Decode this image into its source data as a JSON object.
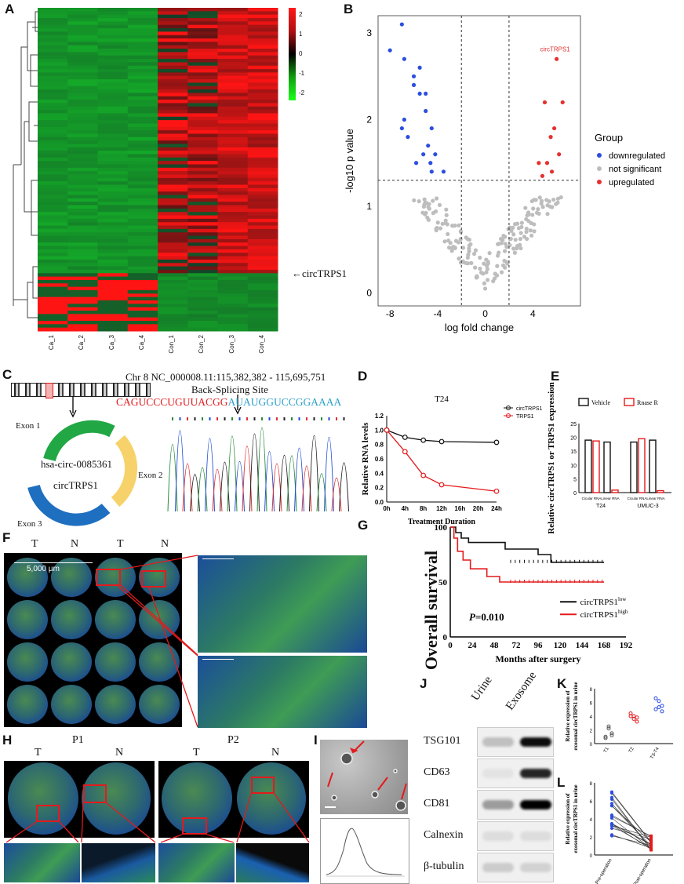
{
  "panels": {
    "A": "A",
    "B": "B",
    "C": "C",
    "D": "D",
    "E": "E",
    "F": "F",
    "G": "G",
    "H": "H",
    "I": "I",
    "J": "J",
    "K": "K",
    "L": "L"
  },
  "heatmap": {
    "columns": [
      "Ca_1",
      "Ca_2",
      "Ca_3",
      "Ca_4",
      "Con_1",
      "Con_2",
      "Con_3",
      "Con_4"
    ],
    "colorbar_ticks": [
      "2",
      "1",
      "0",
      "-1",
      "-2"
    ],
    "annotation": "←circTRPS1",
    "colors": {
      "high": "#ff1a1a",
      "mid": "#000000",
      "low": "#1aff1a"
    }
  },
  "volcano": {
    "xlabel": "log fold change",
    "ylabel": "-log10 p value",
    "xticks": [
      "-8",
      "-4",
      "0",
      "4"
    ],
    "yticks": [
      "0",
      "1",
      "2",
      "3"
    ],
    "annotation": "circTRPS1",
    "legend_title": "Group",
    "legend": [
      "downregulated",
      "not significant",
      "upregulated"
    ],
    "colors": {
      "down": "#2c4ee0",
      "ns": "#bdbdbd",
      "up": "#e53030"
    }
  },
  "panelC": {
    "chr_label": "Chr 8 NC_000008.11:115,382,382 - 115,695,751",
    "bss_label": "Back-Splicing Site",
    "seq_red": "CAGUCCCUGUUACGG",
    "seq_blue": "AUAUGGUCCGGAAAA",
    "exon1": "Exon 1",
    "exon2": "Exon 2",
    "exon3": "Exon 3",
    "circ_id": "hsa-circ-0085361",
    "circ_name": "circTRPS1"
  },
  "panelF": {
    "labels": [
      "T",
      "N",
      "T",
      "N"
    ],
    "scale": "5,000 μm"
  },
  "panelG": {
    "ylabel": "Overall survival",
    "xlabel": "Months after surgery",
    "xticks": [
      "0",
      "24",
      "48",
      "72",
      "96",
      "120",
      "144",
      "168",
      "192"
    ],
    "yticks": [
      "100",
      "50",
      "0"
    ],
    "pvalue_label": "P",
    "pvalue": "=0.010",
    "legend_low": "circTRPS1",
    "legend_low_sup": "low",
    "legend_high": "circTRPS1",
    "legend_high_sup": "high"
  },
  "panelH": {
    "p1": "P1",
    "p2": "P2",
    "labels": [
      "T",
      "N",
      "T",
      "N"
    ]
  },
  "panelJ": {
    "cols": [
      "Urine",
      "Exosome"
    ],
    "rows": [
      "TSG101",
      "CD63",
      "CD81",
      "Calnexin",
      "β-tubulin"
    ]
  },
  "panelK": {
    "ylabel1": "Relative expression of",
    "ylabel2": "exosomal circTRPS1 in urine",
    "xcats": [
      "T1",
      "T2",
      "T3-T4"
    ],
    "yticks": [
      "0",
      "2",
      "4",
      "6",
      "8"
    ]
  },
  "panelL": {
    "ylabel1": "Relative expression of",
    "ylabel2": "exosomal circTRPS1 in urine",
    "xcats": [
      "Pre-operation",
      "Post-operation"
    ],
    "yticks": [
      "0",
      "2",
      "4",
      "6",
      "8"
    ]
  },
  "chart_data": [
    {
      "type": "line",
      "title": "T24",
      "xlabel": "Treatment Duration",
      "ylabel": "Relative RNA levels",
      "categories": [
        "0h",
        "4h",
        "8h",
        "12h",
        "16h",
        "20h",
        "24h"
      ],
      "x": [
        0,
        4,
        8,
        12,
        24
      ],
      "ylim": [
        0,
        1.2
      ],
      "yticks": [
        "0.0",
        "0.2",
        "0.4",
        "0.6",
        "0.8",
        "1.0",
        "1.2"
      ],
      "series": [
        {
          "name": "circTRPS1",
          "values": [
            1.0,
            0.9,
            0.86,
            0.84,
            0.83
          ],
          "color": "#111111"
        },
        {
          "name": "TRPS1",
          "values": [
            1.0,
            0.7,
            0.37,
            0.24,
            0.15
          ],
          "color": "#e41a1c"
        }
      ]
    },
    {
      "type": "bar",
      "ylabel": "Relative circTRPS1 or TRPS1 expression",
      "ylim": [
        0,
        25
      ],
      "yticks": [
        "0",
        "5",
        "10",
        "15",
        "20",
        "25"
      ],
      "groups": [
        "T24",
        "UMUC-3"
      ],
      "categories": [
        "Cicular RNA",
        "Linear RNA",
        "Cicular RNA",
        "Linear RNA"
      ],
      "series": [
        {
          "name": "Vehicle",
          "values": [
            19,
            18.3,
            18.3,
            19
          ],
          "color": "#111111"
        },
        {
          "name": "Rnase R",
          "values": [
            18.7,
            0.9,
            19.5,
            0.7
          ],
          "color": "#e41a1c"
        }
      ]
    }
  ]
}
